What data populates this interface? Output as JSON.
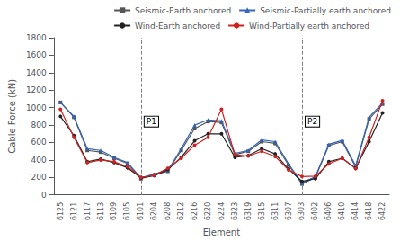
{
  "chart_data": {
    "type": "line",
    "xlabel": "Element",
    "ylabel": "Cable Force (kN)",
    "categories": [
      "6125",
      "6121",
      "6117",
      "6113",
      "6109",
      "6105",
      "6101",
      "6204",
      "6208",
      "6212",
      "6216",
      "6220",
      "6224",
      "6323",
      "6319",
      "6315",
      "6311",
      "6307",
      "6303",
      "6402",
      "6406",
      "6410",
      "6414",
      "6418",
      "6422"
    ],
    "series": [
      {
        "name": "Seismic-Earth anchored",
        "color": "#555555",
        "marker": "square",
        "values": [
          1060,
          890,
          510,
          490,
          420,
          360,
          185,
          230,
          270,
          510,
          760,
          840,
          830,
          460,
          500,
          610,
          590,
          340,
          125,
          200,
          565,
          610,
          320,
          870,
          1040
        ]
      },
      {
        "name": "Seismic-Partially earth anchored",
        "color": "#3366bb",
        "marker": "triangle",
        "values": [
          1060,
          900,
          530,
          510,
          430,
          370,
          195,
          240,
          280,
          530,
          800,
          860,
          850,
          475,
          510,
          630,
          610,
          355,
          135,
          210,
          580,
          625,
          335,
          890,
          1055
        ]
      },
      {
        "name": "Wind-Earth anchored",
        "color": "#222222",
        "marker": "circle",
        "values": [
          900,
          680,
          380,
          410,
          370,
          310,
          195,
          220,
          290,
          430,
          620,
          700,
          700,
          430,
          450,
          530,
          470,
          295,
          155,
          185,
          380,
          420,
          305,
          610,
          940
        ]
      },
      {
        "name": "Wind-Partially earth anchored",
        "color": "#cc2222",
        "marker": "circle",
        "values": [
          980,
          660,
          370,
          400,
          380,
          325,
          200,
          225,
          305,
          420,
          570,
          660,
          980,
          460,
          445,
          500,
          440,
          285,
          210,
          215,
          355,
          420,
          300,
          660,
          1080
        ]
      }
    ],
    "ylim": [
      0,
      1800
    ],
    "yticks": [
      0,
      200,
      400,
      600,
      800,
      1000,
      1200,
      1400,
      1600,
      1800
    ],
    "grid": false,
    "legend": "upper right",
    "annotations": [
      {
        "text": "P1",
        "x": "6101",
        "y": 840
      },
      {
        "text": "P2",
        "x": "6303",
        "y": 840
      }
    ]
  }
}
